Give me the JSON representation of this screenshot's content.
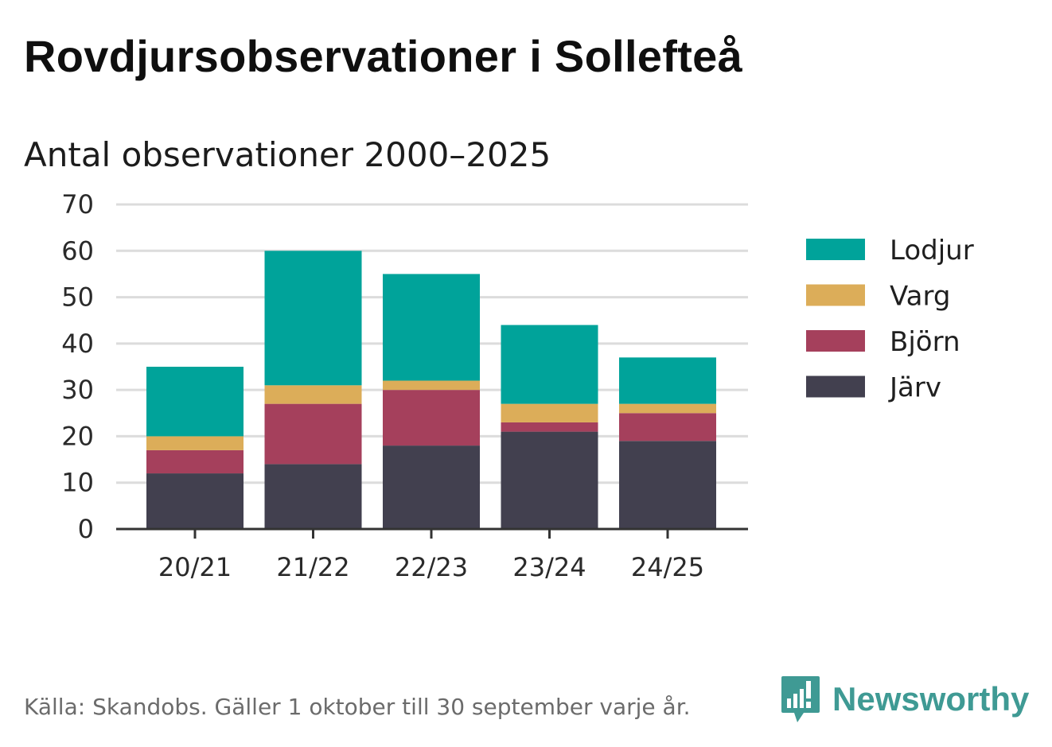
{
  "title": "Rovdjursobservationer i Sollefteå",
  "subtitle": "Antal observationer 2000–2025",
  "source": "Källa: Skandobs. Gäller 1 oktober till 30 september varje år.",
  "brand": {
    "name": "Newsworthy",
    "icon": "newsworthy-bar-chart-icon",
    "color": "#3f9a94"
  },
  "chart_data": {
    "type": "bar",
    "stacked": true,
    "title": "Antal observationer 2000–2025",
    "xlabel": "",
    "ylabel": "",
    "categories": [
      "20/21",
      "21/22",
      "22/23",
      "23/24",
      "24/25"
    ],
    "ylim": [
      0,
      70
    ],
    "yticks": [
      0,
      10,
      20,
      30,
      40,
      50,
      60,
      70
    ],
    "grid": true,
    "legend_position": "right",
    "series": [
      {
        "name": "Järv",
        "color": "#42404f",
        "values": [
          12,
          14,
          18,
          21,
          19
        ]
      },
      {
        "name": "Björn",
        "color": "#a5405c",
        "values": [
          5,
          13,
          12,
          2,
          6
        ]
      },
      {
        "name": "Varg",
        "color": "#dcad59",
        "values": [
          3,
          4,
          2,
          4,
          2
        ]
      },
      {
        "name": "Lodjur",
        "color": "#00a39a",
        "values": [
          15,
          29,
          23,
          17,
          10
        ]
      }
    ],
    "legend_order": [
      "Lodjur",
      "Varg",
      "Björn",
      "Järv"
    ]
  }
}
